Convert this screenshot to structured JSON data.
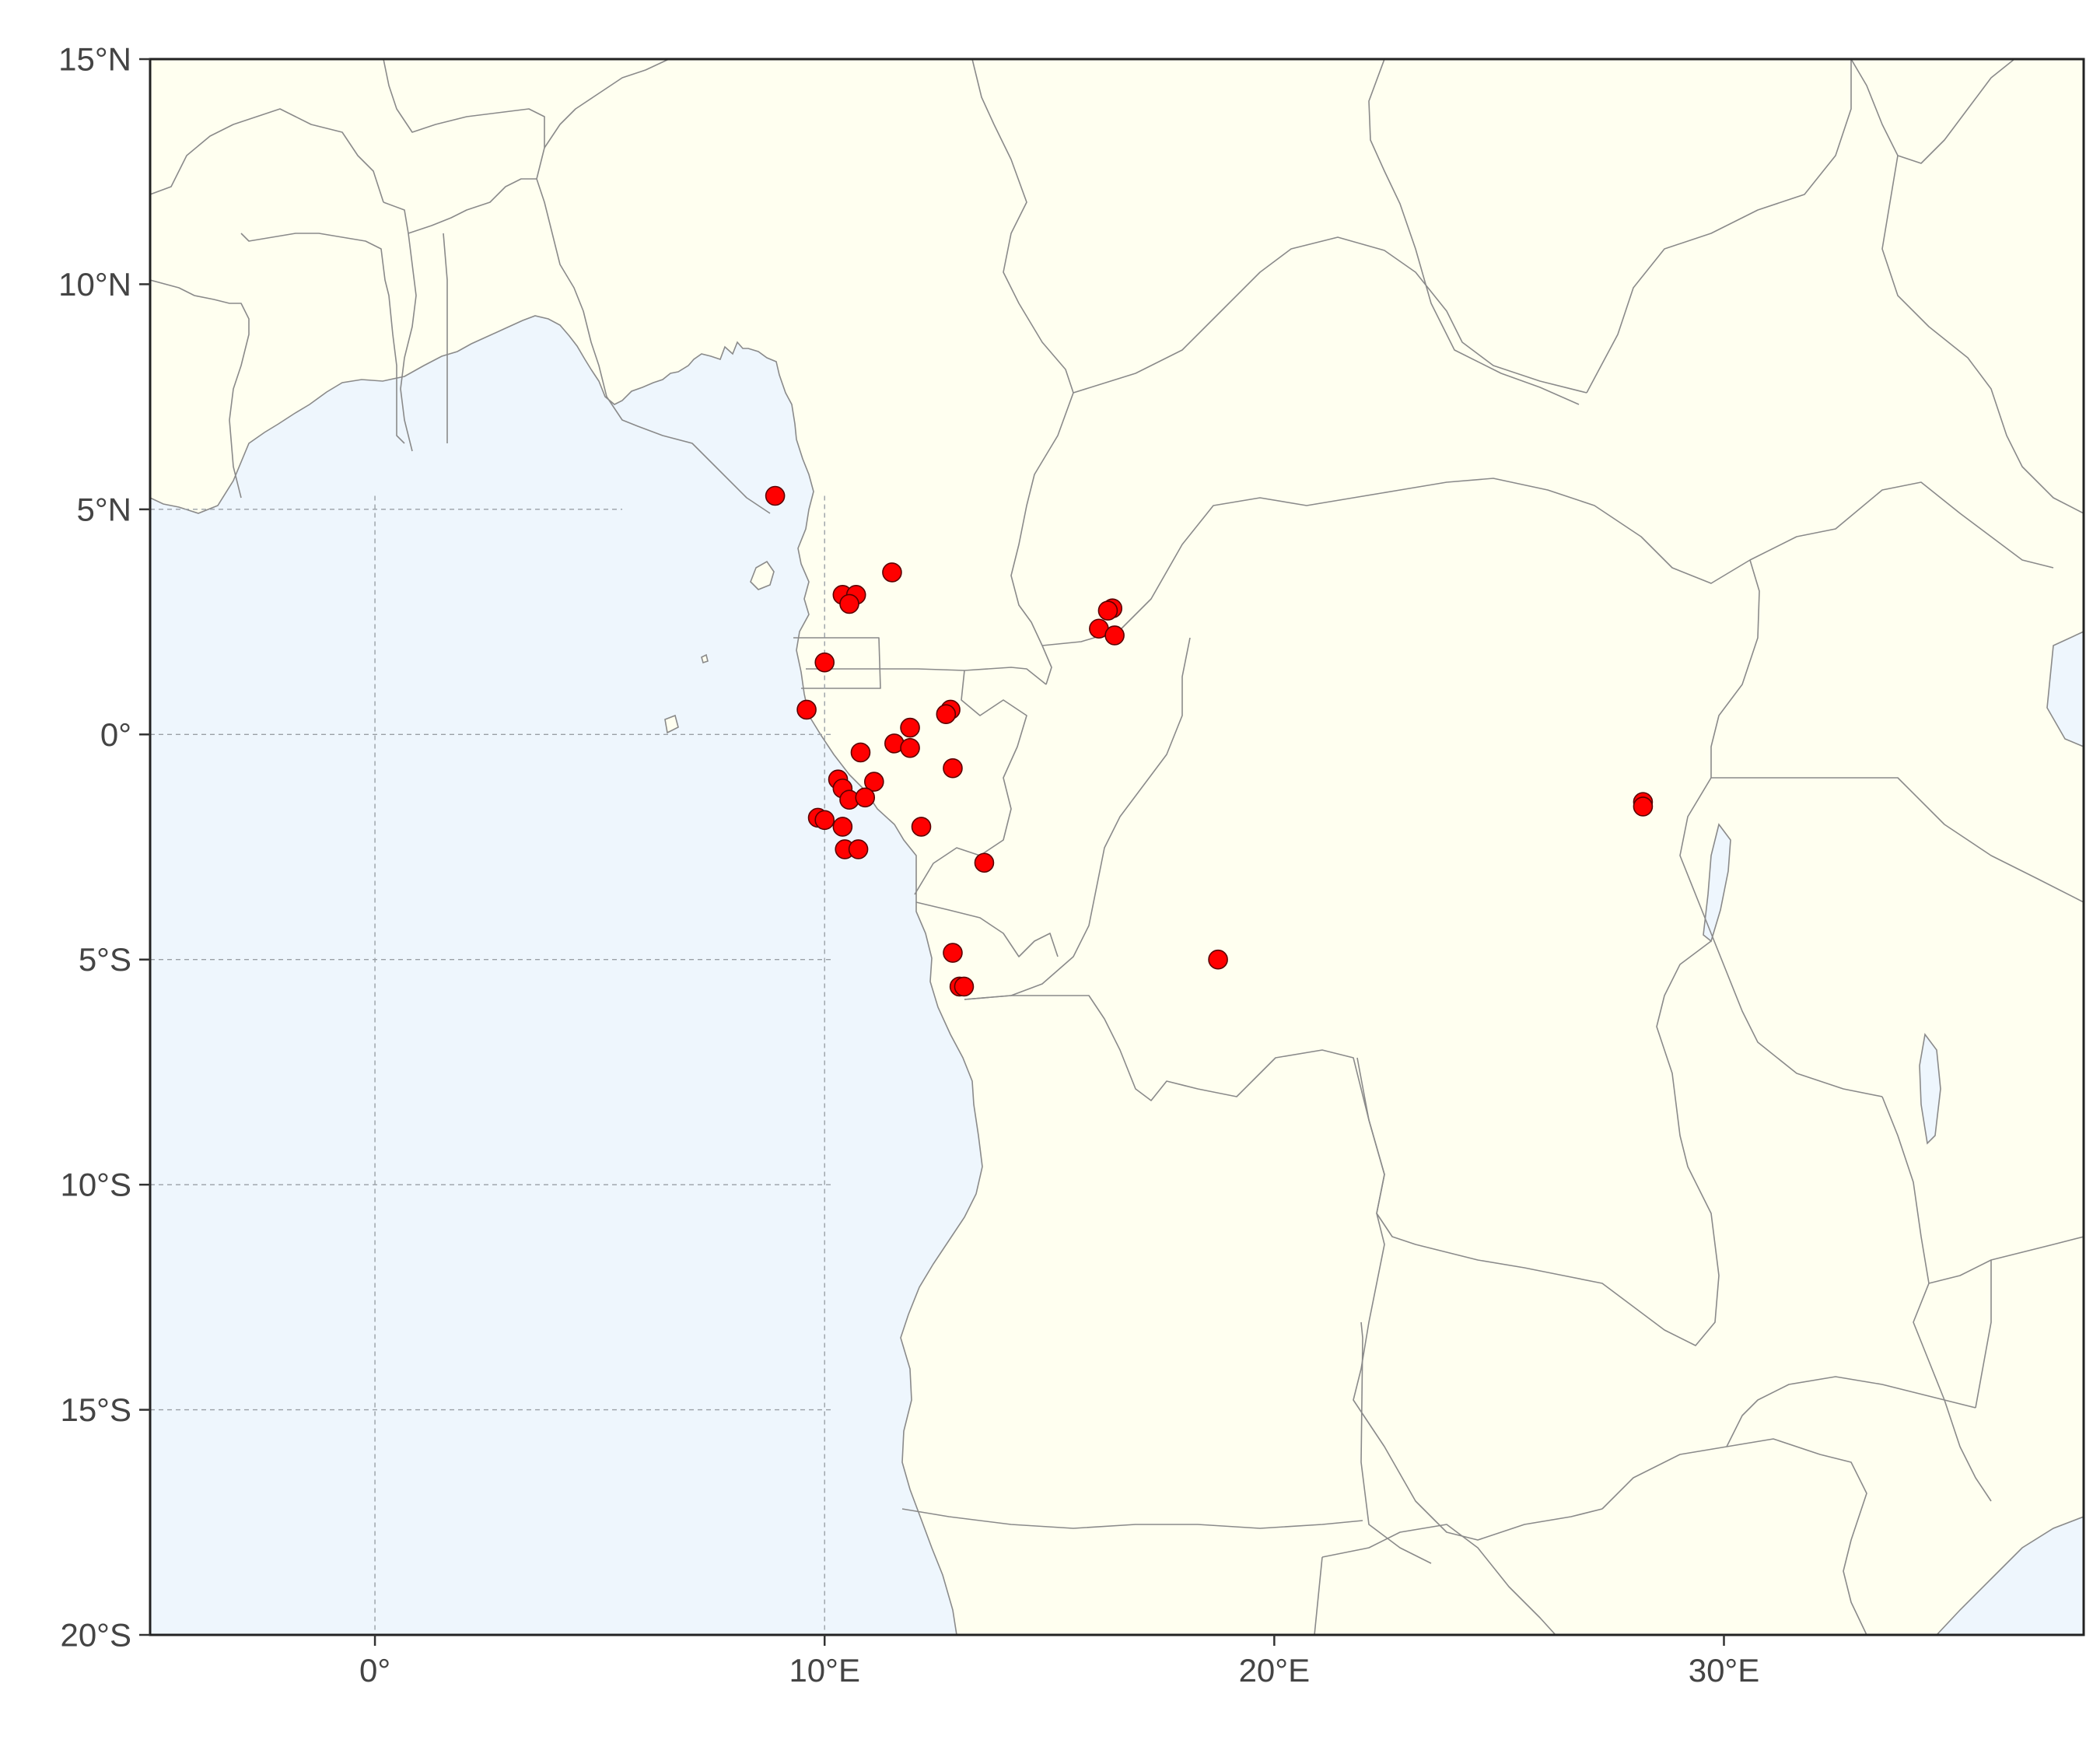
{
  "map": {
    "lon_range": [
      -5,
      38
    ],
    "lat_range": [
      -20,
      15
    ],
    "colors": {
      "ocean": "#eef6fd",
      "land": "#fffff0",
      "border": "#8a8a8a",
      "point_fill": "#ff0000",
      "point_stroke": "#5a0000",
      "frame": "#222222"
    },
    "lat_ticks": [
      {
        "value": 15,
        "label": "15°N"
      },
      {
        "value": 10,
        "label": "10°N"
      },
      {
        "value": 5,
        "label": "5°N"
      },
      {
        "value": 0,
        "label": "0°"
      },
      {
        "value": -5,
        "label": "5°S"
      },
      {
        "value": -10,
        "label": "10°S"
      },
      {
        "value": -15,
        "label": "15°S"
      },
      {
        "value": -20,
        "label": "20°S"
      }
    ],
    "lon_ticks": [
      {
        "value": 0,
        "label": "0°"
      },
      {
        "value": 10,
        "label": "10°E"
      },
      {
        "value": 20,
        "label": "20°E"
      },
      {
        "value": 30,
        "label": "30°E"
      }
    ],
    "gridlines": {
      "lon": [
        0,
        10
      ],
      "lat": [
        5,
        0,
        -5,
        -10,
        -15
      ]
    },
    "points": [
      [
        8.9,
        5.3
      ],
      [
        11.5,
        3.6
      ],
      [
        10.4,
        3.1
      ],
      [
        10.7,
        3.1
      ],
      [
        10.55,
        2.9
      ],
      [
        16.4,
        2.8
      ],
      [
        16.3,
        2.75
      ],
      [
        16.1,
        2.35
      ],
      [
        16.45,
        2.2
      ],
      [
        10.0,
        1.6
      ],
      [
        9.6,
        0.55
      ],
      [
        12.8,
        0.55
      ],
      [
        12.7,
        0.45
      ],
      [
        11.9,
        0.15
      ],
      [
        11.55,
        -0.2
      ],
      [
        11.9,
        -0.3
      ],
      [
        10.8,
        -0.4
      ],
      [
        12.85,
        -0.75
      ],
      [
        10.3,
        -1.0
      ],
      [
        11.1,
        -1.05
      ],
      [
        10.4,
        -1.2
      ],
      [
        10.55,
        -1.45
      ],
      [
        10.9,
        -1.4
      ],
      [
        9.85,
        -1.85
      ],
      [
        10.0,
        -1.9
      ],
      [
        10.4,
        -2.05
      ],
      [
        12.15,
        -2.05
      ],
      [
        10.45,
        -2.55
      ],
      [
        10.75,
        -2.55
      ],
      [
        13.55,
        -2.85
      ],
      [
        12.85,
        -4.85
      ],
      [
        13.0,
        -5.6
      ],
      [
        13.1,
        -5.6
      ],
      [
        18.75,
        -5.0
      ],
      [
        28.2,
        -1.5
      ],
      [
        28.2,
        -1.6
      ]
    ]
  }
}
